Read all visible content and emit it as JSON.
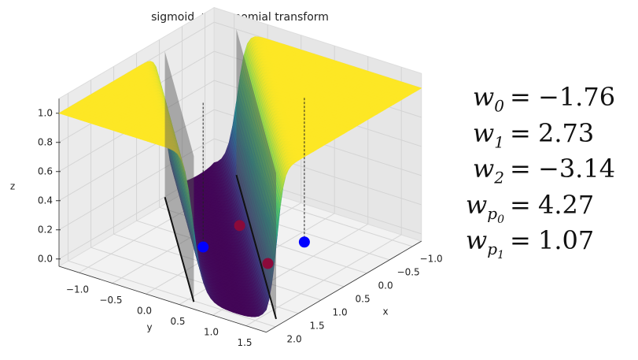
{
  "chart_data": {
    "type": "surface3d",
    "title": "sigmoid + polynomial transform",
    "xlabel": "x",
    "ylabel": "y",
    "zlabel": "z",
    "xlim": [
      -1.2,
      2.2
    ],
    "ylim": [
      -1.3,
      1.8
    ],
    "zlim": [
      -0.05,
      1.1
    ],
    "xticks": [
      {
        "value": -1,
        "label": "−1.0"
      },
      {
        "value": -0.5,
        "label": "−0.5"
      },
      {
        "value": 0,
        "label": "0.0"
      },
      {
        "value": 0.5,
        "label": "0.5"
      },
      {
        "value": 1,
        "label": "1.0"
      },
      {
        "value": 1.5,
        "label": "1.5"
      },
      {
        "value": 2,
        "label": "2.0"
      }
    ],
    "yticks": [
      {
        "value": -1,
        "label": "−1.0"
      },
      {
        "value": -0.5,
        "label": "−0.5"
      },
      {
        "value": 0,
        "label": "0.0"
      },
      {
        "value": 0.5,
        "label": "0.5"
      },
      {
        "value": 1,
        "label": "1.0"
      },
      {
        "value": 1.5,
        "label": "1.5"
      }
    ],
    "zticks": [
      {
        "value": 0,
        "label": "0.0"
      },
      {
        "value": 0.2,
        "label": "0.2"
      },
      {
        "value": 0.4,
        "label": "0.4"
      },
      {
        "value": 0.6,
        "label": "0.6"
      },
      {
        "value": 0.8,
        "label": "0.8"
      },
      {
        "value": 1,
        "label": "1.0"
      }
    ],
    "grid": true,
    "weights": [
      {
        "symbol": "w",
        "subscript": "0",
        "relation": "=",
        "value": -1.76,
        "label": "−1.76"
      },
      {
        "symbol": "w",
        "subscript": "1",
        "relation": "=",
        "value": 2.73,
        "label": "2.73"
      },
      {
        "symbol": "w",
        "subscript": "2",
        "relation": "=",
        "value": -3.14,
        "label": "−3.14"
      },
      {
        "symbol": "w",
        "subscript": "p",
        "subsubscript": "0",
        "relation": "=",
        "value": 4.27,
        "label": "4.27"
      },
      {
        "symbol": "w",
        "subscript": "p",
        "subsubscript": "1",
        "relation": "=",
        "value": 1.07,
        "label": "1.07"
      }
    ],
    "points": [
      {
        "x": 0.8,
        "y": -0.1,
        "z": 0,
        "color": "#0000ff"
      },
      {
        "x": -0.1,
        "y": 0.8,
        "z": 0,
        "color": "#0000ff"
      },
      {
        "x": 0.0,
        "y": -0.1,
        "z": 0,
        "color": "#8b0a3a"
      },
      {
        "x": 0.7,
        "y": 0.8,
        "z": 0,
        "color": "#8b0a3a"
      }
    ]
  }
}
